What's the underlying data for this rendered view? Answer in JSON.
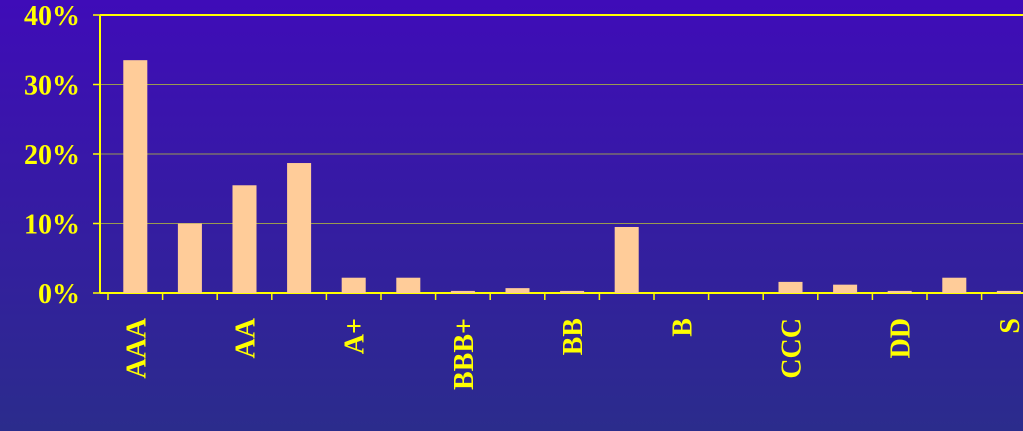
{
  "chart_data": {
    "type": "bar",
    "categories": [
      "AAA",
      null,
      "AA",
      null,
      "A+",
      null,
      "BBB+",
      null,
      "BB",
      null,
      "B",
      null,
      "CCC",
      null,
      "DD",
      null,
      "S"
    ],
    "values": [
      33.5,
      10,
      15.5,
      18.7,
      2.2,
      2.2,
      0.3,
      0.7,
      0.3,
      9.5,
      0,
      0,
      1.6,
      1.2,
      0.3,
      2.2,
      0.3
    ],
    "color": "#ffcc99",
    "ylim": [
      0,
      40
    ],
    "yticks": [
      {
        "value": 0,
        "label": "0%"
      },
      {
        "value": 10,
        "label": "10%"
      },
      {
        "value": 20,
        "label": "20%"
      },
      {
        "value": 30,
        "label": "30%"
      },
      {
        "value": 40,
        "label": "40%"
      }
    ],
    "grid": true
  }
}
